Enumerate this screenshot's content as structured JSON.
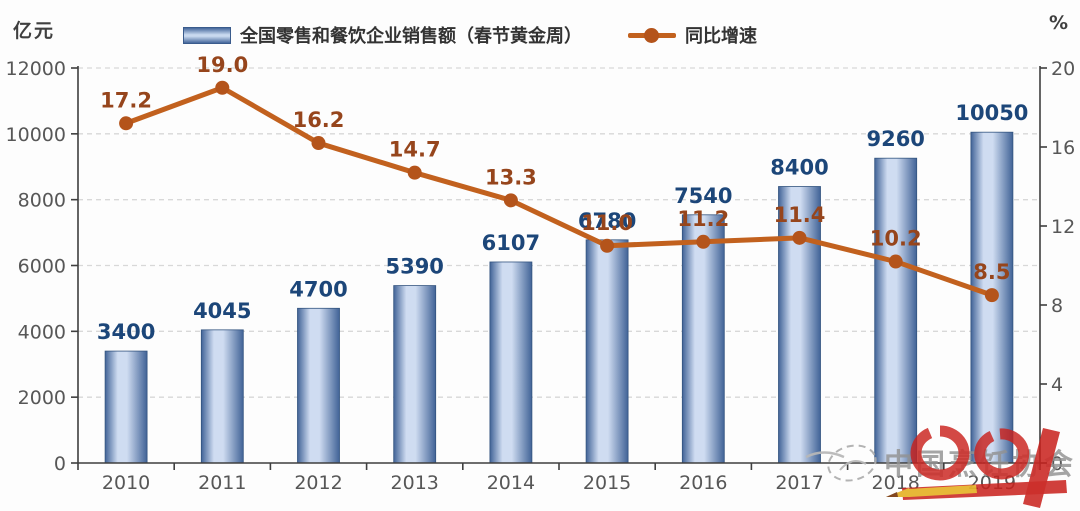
{
  "chart_data": {
    "type": "bar+line",
    "title": "",
    "categories": [
      "2010",
      "2011",
      "2012",
      "2013",
      "2014",
      "2015",
      "2016",
      "2017",
      "2018",
      "2019"
    ],
    "series": [
      {
        "name": "全国零售和餐饮企业销售额（春节黄金周）",
        "type": "bar",
        "axis": "left",
        "values": [
          3400,
          4045,
          4700,
          5390,
          6107,
          6780,
          7540,
          8400,
          9260,
          10050
        ]
      },
      {
        "name": "同比增速",
        "type": "line",
        "axis": "right",
        "values": [
          17.2,
          19.0,
          16.2,
          14.7,
          13.3,
          11.0,
          11.2,
          11.4,
          10.2,
          8.5
        ]
      }
    ],
    "left_axis": {
      "label": "亿元",
      "min": 0,
      "max": 12000,
      "step": 2000,
      "ticks": [
        0,
        2000,
        4000,
        6000,
        8000,
        10000,
        12000
      ]
    },
    "right_axis": {
      "label": "%",
      "min": 0,
      "max": 20,
      "step": 4,
      "ticks": [
        0,
        4,
        8,
        12,
        16,
        20
      ]
    },
    "grid": "horizontal-dashed",
    "legend_position": "top"
  },
  "watermark": {
    "text": "中国烹饪协会"
  },
  "colors": {
    "bar_edge": "#416397",
    "bar_mid": "#cfdcf1",
    "bar_border": "#33547f",
    "bar_label": "#1c4679",
    "line": "#c2611e",
    "marker": "#b4541b",
    "line_label": "#96451c",
    "grid": "#d8d8d8",
    "axis": "#3f3f3f",
    "tick_label": "#575757",
    "watermark_gray": "#929292",
    "watermark_red": "#c9211c",
    "watermark_yellow": "#e6b32a"
  }
}
